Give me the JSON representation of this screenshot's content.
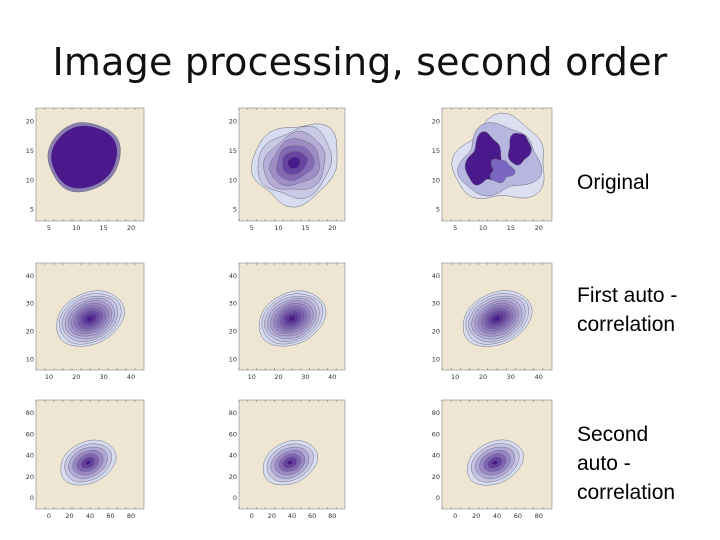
{
  "slide": {
    "title": "Image processing, second order"
  },
  "rows": [
    {
      "label": "Original"
    },
    {
      "label": "First auto -\ncorrelation"
    },
    {
      "label": "Second\nauto -\ncorrelation"
    }
  ],
  "colors": {
    "plot_background": "#eee5d3",
    "contour_fill_dark": "#4a1a8c",
    "contour_fill_light": "#d8dcef",
    "contour_line": "#666a80"
  },
  "plots": [
    {
      "row": 0,
      "col": 0,
      "shape": "filled-ellipse",
      "x_ticks": [
        "5",
        "10",
        "15",
        "20"
      ],
      "y_ticks": [
        "20",
        "15",
        "10",
        "5"
      ]
    },
    {
      "row": 0,
      "col": 1,
      "shape": "blobby-contours",
      "x_ticks": [
        "5",
        "10",
        "15",
        "20"
      ],
      "y_ticks": [
        "20",
        "15",
        "10",
        "5"
      ]
    },
    {
      "row": 0,
      "col": 2,
      "shape": "irregular-blobs",
      "x_ticks": [
        "5",
        "10",
        "15",
        "20"
      ],
      "y_ticks": [
        "20",
        "15",
        "10",
        "5"
      ]
    },
    {
      "row": 1,
      "col": 0,
      "shape": "elliptical-contours",
      "x_ticks": [
        "10",
        "20",
        "30",
        "40"
      ],
      "y_ticks": [
        "40",
        "30",
        "20",
        "10"
      ]
    },
    {
      "row": 1,
      "col": 1,
      "shape": "elliptical-contours",
      "x_ticks": [
        "10",
        "20",
        "30",
        "40"
      ],
      "y_ticks": [
        "40",
        "30",
        "20",
        "10"
      ]
    },
    {
      "row": 1,
      "col": 2,
      "shape": "elliptical-contours",
      "x_ticks": [
        "10",
        "20",
        "30",
        "40"
      ],
      "y_ticks": [
        "40",
        "30",
        "20",
        "10"
      ]
    },
    {
      "row": 2,
      "col": 0,
      "shape": "elliptical-contours-small",
      "x_ticks": [
        "0",
        "20",
        "40",
        "60",
        "80"
      ],
      "y_ticks": [
        "80",
        "60",
        "40",
        "20",
        "0"
      ]
    },
    {
      "row": 2,
      "col": 1,
      "shape": "elliptical-contours-small",
      "x_ticks": [
        "0",
        "20",
        "40",
        "60",
        "80"
      ],
      "y_ticks": [
        "80",
        "60",
        "40",
        "20",
        "0"
      ]
    },
    {
      "row": 2,
      "col": 2,
      "shape": "elliptical-contours-small",
      "x_ticks": [
        "0",
        "20",
        "40",
        "60",
        "80"
      ],
      "y_ticks": [
        "80",
        "60",
        "40",
        "20",
        "0"
      ]
    }
  ]
}
